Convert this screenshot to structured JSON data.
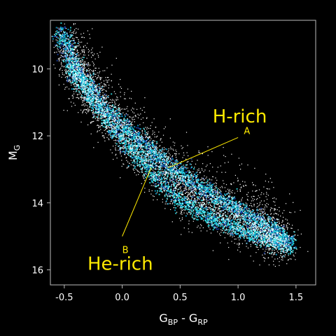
{
  "chart_data": {
    "type": "scatter",
    "title": "",
    "xlabel": {
      "main": "G",
      "sub1": "BP",
      "mid": " - G",
      "sub2": "RP"
    },
    "ylabel": {
      "main": "M",
      "sub": "G"
    },
    "xlim": [
      -0.62,
      1.67
    ],
    "ylim": [
      16.45,
      8.55
    ],
    "y_inverted": true,
    "x_ticks": [
      {
        "value": -0.5,
        "label": "-0.5"
      },
      {
        "value": 0.0,
        "label": "0.0"
      },
      {
        "value": 0.5,
        "label": "0.5"
      },
      {
        "value": 1.0,
        "label": "1.0"
      },
      {
        "value": 1.5,
        "label": "1.5"
      }
    ],
    "y_ticks": [
      {
        "value": 10,
        "label": "10"
      },
      {
        "value": 12,
        "label": "12"
      },
      {
        "value": 14,
        "label": "14"
      },
      {
        "value": 16,
        "label": "16"
      }
    ],
    "grid": false,
    "colors": {
      "background": "#000000",
      "axes": "#bbbbbb",
      "points": "#ffffff",
      "density_low": "#33e0e8",
      "density_mid": "#0aa6d6",
      "density_high": "#1a3fa8",
      "annotation": "#ffea00"
    },
    "sequences": [
      {
        "key": "H",
        "curve": [
          {
            "x": -0.55,
            "y": 8.8
          },
          {
            "x": -0.4,
            "y": 10.0
          },
          {
            "x": -0.2,
            "y": 11.0
          },
          {
            "x": 0.1,
            "y": 12.0
          },
          {
            "x": 0.4,
            "y": 12.9
          },
          {
            "x": 0.7,
            "y": 13.6
          },
          {
            "x": 1.0,
            "y": 14.2
          },
          {
            "x": 1.3,
            "y": 14.8
          },
          {
            "x": 1.45,
            "y": 15.3
          }
        ]
      },
      {
        "key": "He",
        "curve": [
          {
            "x": -0.45,
            "y": 9.9
          },
          {
            "x": -0.25,
            "y": 11.0
          },
          {
            "x": 0.0,
            "y": 12.1
          },
          {
            "x": 0.25,
            "y": 13.1
          },
          {
            "x": 0.5,
            "y": 13.9
          },
          {
            "x": 0.8,
            "y": 14.5
          },
          {
            "x": 1.1,
            "y": 14.9
          },
          {
            "x": 1.35,
            "y": 15.2
          }
        ]
      }
    ],
    "annotations": [
      {
        "label": "H-rich",
        "size": "large",
        "x": 0.78,
        "y": 11.6
      },
      {
        "label": "A",
        "size": "small",
        "x": 1.05,
        "y": 11.95,
        "line_from": [
          1.0,
          12.05
        ],
        "line_to": [
          0.4,
          12.95
        ]
      },
      {
        "label": "He-rich",
        "size": "large",
        "x": -0.3,
        "y": 16.0
      },
      {
        "label": "B",
        "size": "small",
        "x": 0.0,
        "y": 15.5,
        "line_from": [
          0.0,
          15.0
        ],
        "line_to": [
          0.25,
          12.95
        ]
      }
    ]
  }
}
